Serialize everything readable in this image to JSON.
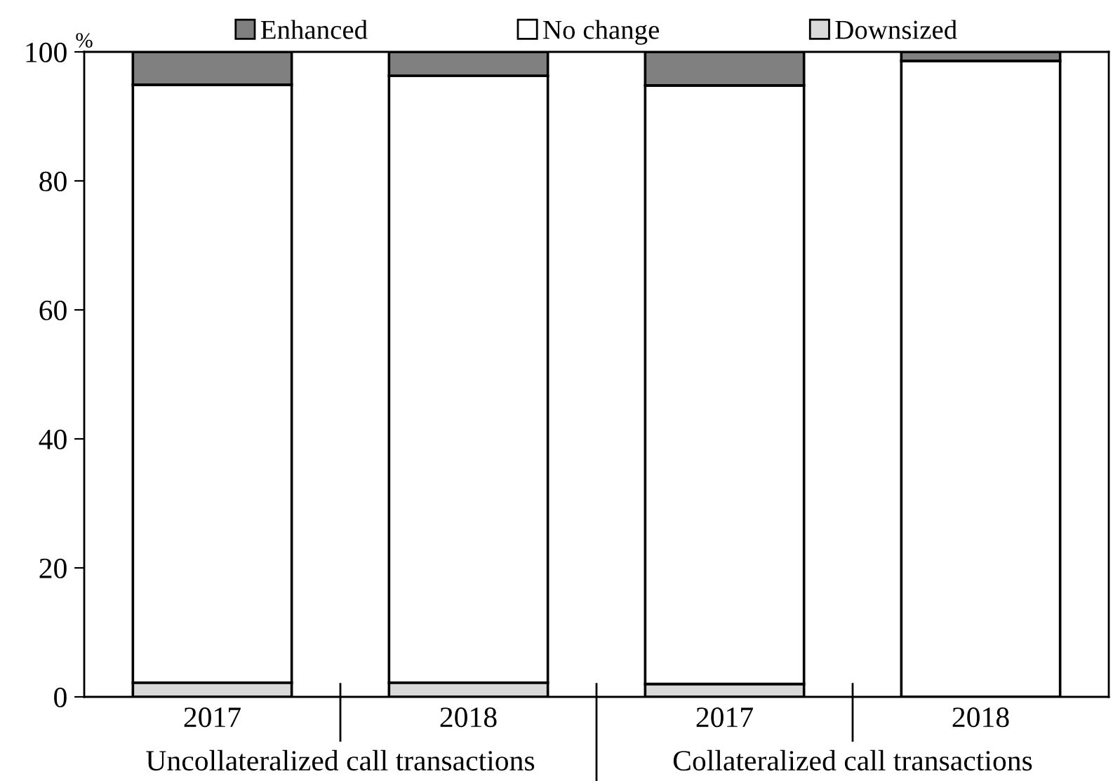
{
  "chart_data": {
    "type": "bar",
    "stacked": true,
    "ylabel": "%",
    "categories": [
      "2017",
      "2018",
      "2017",
      "2018"
    ],
    "series": [
      {
        "name": "Downsized",
        "color": "#d9d9d9",
        "values": [
          2.2,
          2.2,
          2.0,
          0
        ]
      },
      {
        "name": "No change",
        "color": "#ffffff",
        "values": [
          92.7,
          94.1,
          92.8,
          98.6
        ]
      },
      {
        "name": "Enhanced",
        "color": "#808080",
        "values": [
          5.1,
          3.7,
          5.2,
          1.4
        ]
      }
    ],
    "annotations": [
      "Uncollateralized call transactions",
      "Collateralized call transactions"
    ],
    "ylim": [
      0,
      100
    ],
    "yticks": [
      0,
      20,
      40,
      60,
      80,
      100
    ],
    "grid": false,
    "legend": "top"
  }
}
